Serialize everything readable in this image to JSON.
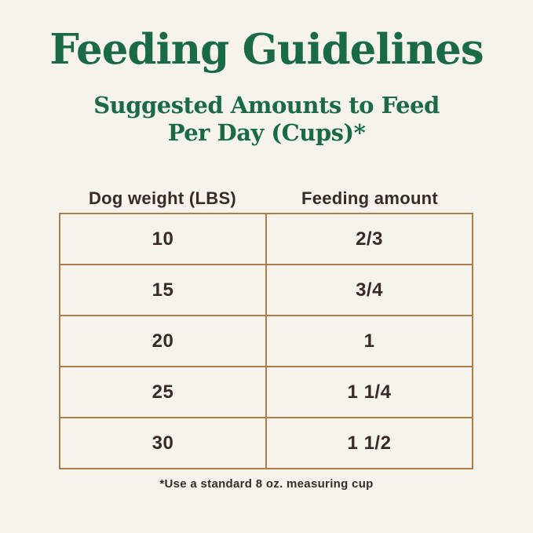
{
  "header": {
    "title": "Feeding Guidelines",
    "subtitle_line1": "Suggested Amounts to Feed",
    "subtitle_line2": "Per Day (Cups)*"
  },
  "footnote": "*Use a standard 8 oz. measuring cup",
  "colors": {
    "background": "#f5f3ec",
    "heading_green": "#1a6b45",
    "table_border_tan": "#ad7e4c",
    "body_text_dark": "#392a28"
  },
  "chart_data": {
    "type": "table",
    "title": "Feeding Guidelines",
    "subtitle": "Suggested Amounts to Feed Per Day (Cups)*",
    "columns": [
      "Dog weight (LBS)",
      "Feeding amount"
    ],
    "rows": [
      [
        "10",
        "2/3"
      ],
      [
        "15",
        "3/4"
      ],
      [
        "20",
        "1"
      ],
      [
        "25",
        "1 1/4"
      ],
      [
        "30",
        "1 1/2"
      ]
    ],
    "footnote": "*Use a standard 8 oz. measuring cup",
    "layout": "two equal centered columns, 5 data rows, header labels outside bordered grid"
  }
}
